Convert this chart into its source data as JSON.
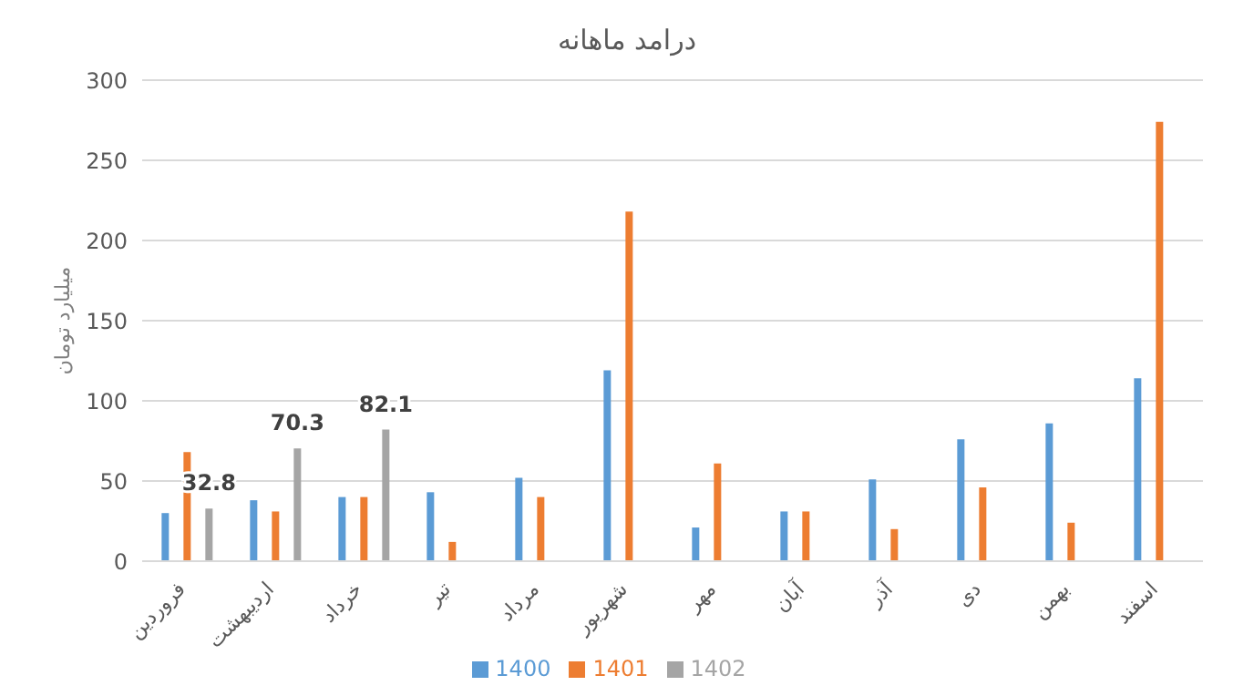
{
  "chart_data": {
    "type": "bar",
    "title": "درامد ماهانه",
    "ylabel": "میلیارد تومان",
    "categories": [
      "فروردین",
      "اردیبهشت",
      "خرداد",
      "تیر",
      "مرداد",
      "شهریور",
      "مهر",
      "آبان",
      "آذر",
      "دی",
      "بهمن",
      "اسفند"
    ],
    "series": [
      {
        "name": "1400",
        "color": "#5b9bd5",
        "values": [
          30,
          38,
          40,
          43,
          52,
          119,
          21,
          31,
          51,
          76,
          86,
          114
        ]
      },
      {
        "name": "1401",
        "color": "#ed7d31",
        "values": [
          68,
          31,
          40,
          12,
          40,
          218,
          61,
          31,
          20,
          46,
          24,
          274
        ]
      },
      {
        "name": "1402",
        "color": "#a5a5a5",
        "values": [
          32.8,
          70.3,
          82.1,
          null,
          null,
          null,
          null,
          null,
          null,
          null,
          null,
          null
        ],
        "value_labels": [
          "32.8",
          "70.3",
          "82.1",
          null,
          null,
          null,
          null,
          null,
          null,
          null,
          null,
          null
        ]
      }
    ],
    "ylim": [
      0,
      300
    ],
    "yticks": [
      0,
      50,
      100,
      150,
      200,
      250,
      300
    ],
    "grid": "y",
    "legend": "bottom"
  }
}
